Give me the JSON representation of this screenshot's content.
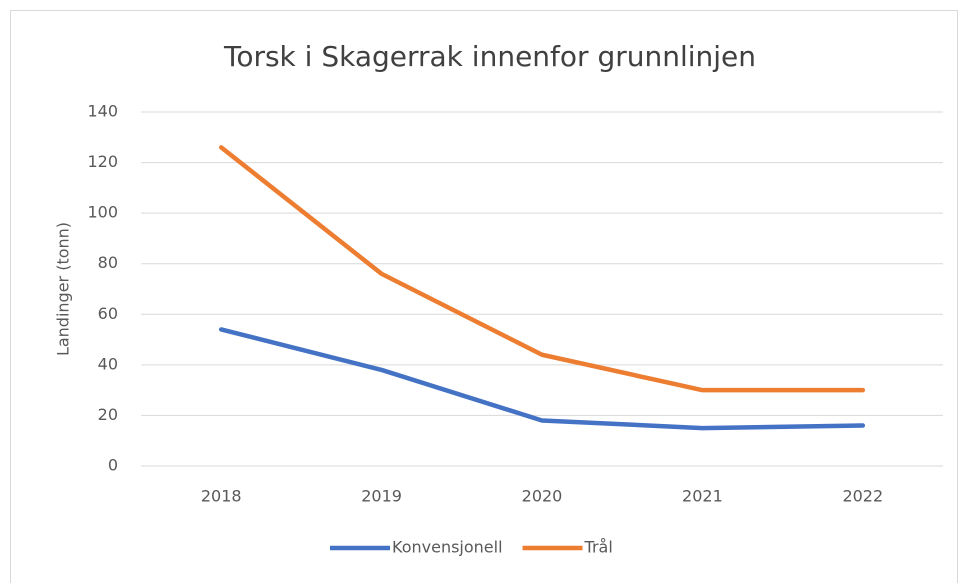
{
  "chart_data": {
    "type": "line",
    "title": "Torsk i Skagerrak innenfor grunnlinjen",
    "y_label": "Landinger (tonn)",
    "categories": [
      "2018",
      "2019",
      "2020",
      "2021",
      "2022"
    ],
    "series": [
      {
        "name": "Konvensjonell",
        "color": "#4472c4",
        "values": [
          54,
          38,
          18,
          15,
          16
        ]
      },
      {
        "name": "Trål",
        "color": "#ed7d31",
        "values": [
          126,
          76,
          44,
          30,
          30
        ]
      }
    ],
    "ylim": [
      0,
      140
    ],
    "yticks": [
      0,
      20,
      40,
      60,
      80,
      100,
      120,
      140
    ],
    "grid": true,
    "legend": "bottom"
  }
}
